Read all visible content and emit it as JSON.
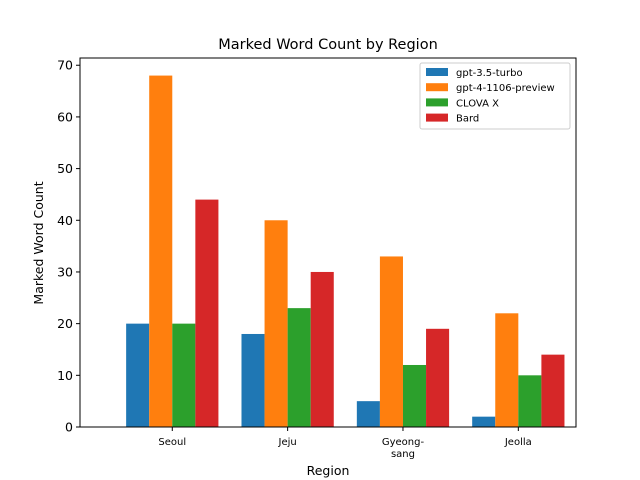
{
  "chart_data": {
    "type": "bar",
    "title": "Marked Word Count by Region",
    "xlabel": "Region",
    "ylabel": "Marked Word Count",
    "categories": [
      "Seoul",
      "Jeju",
      "Gyeong-\nsang",
      "Jeolla"
    ],
    "ylim": [
      0,
      71.4
    ],
    "yticks": [
      0,
      10,
      20,
      30,
      40,
      50,
      60,
      70
    ],
    "grid": false,
    "legend_position": "top-right",
    "series": [
      {
        "name": "gpt-3.5-turbo",
        "color": "#1f77b4",
        "values": [
          20,
          18,
          5,
          2
        ]
      },
      {
        "name": "gpt-4-1106-preview",
        "color": "#ff7f0e",
        "values": [
          68,
          40,
          33,
          22
        ]
      },
      {
        "name": "CLOVA X",
        "color": "#2ca02c",
        "values": [
          20,
          23,
          12,
          10
        ]
      },
      {
        "name": "Bard",
        "color": "#d62728",
        "values": [
          44,
          30,
          19,
          14
        ]
      }
    ]
  }
}
